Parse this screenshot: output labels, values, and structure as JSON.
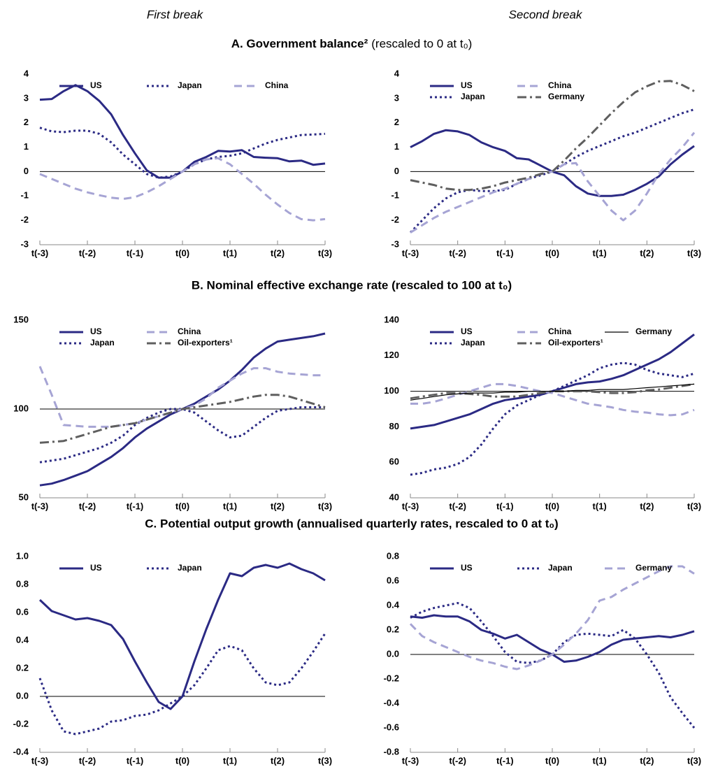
{
  "column_headings": [
    "First break",
    "Second break"
  ],
  "sections": [
    {
      "title": "A. Government balance²",
      "note": "(rescaled to 0 at t₀)"
    },
    {
      "title": "B. Nominal effective exchange rate (rescaled to 100 at t₀)"
    },
    {
      "title": "C. Potential output growth (annualised quarterly rates, rescaled to 0 at t₀)"
    }
  ],
  "chart_data": [
    {
      "type": "line",
      "x": [
        -3,
        -2.75,
        -2.5,
        -2.25,
        -2,
        -1.75,
        -1.5,
        -1.25,
        -1,
        -0.75,
        -0.5,
        -0.25,
        0,
        0.25,
        0.5,
        0.75,
        1,
        1.25,
        1.5,
        1.75,
        2,
        2.25,
        2.5,
        2.75,
        3
      ],
      "xlim": [
        -3,
        3
      ],
      "xticks": [
        {
          "value": -3,
          "label": "t(-3)"
        },
        {
          "value": -2,
          "label": "t(-2)"
        },
        {
          "value": -1,
          "label": "t(-1)"
        },
        {
          "value": 0,
          "label": "t(0)"
        },
        {
          "value": 1,
          "label": "t(1)"
        },
        {
          "value": 2,
          "label": "t(2)"
        },
        {
          "value": 3,
          "label": "t(3)"
        }
      ],
      "ylim": [
        -3,
        4
      ],
      "yticks": [
        -3,
        -2,
        -1,
        0,
        1,
        2,
        3,
        4
      ],
      "reference_line": 0,
      "series": [
        {
          "name": "US",
          "color": "#2b2a84",
          "dash": "solid",
          "values": [
            2.95,
            2.98,
            3.3,
            3.55,
            3.3,
            2.9,
            2.35,
            1.5,
            0.75,
            0.05,
            -0.25,
            -0.25,
            0,
            0.4,
            0.6,
            0.85,
            0.82,
            0.88,
            0.6,
            0.57,
            0.55,
            0.42,
            0.45,
            0.28,
            0.33
          ]
        },
        {
          "name": "Japan",
          "color": "#2b2a84",
          "dash": "dotted",
          "values": [
            1.8,
            1.65,
            1.62,
            1.68,
            1.68,
            1.55,
            1.2,
            0.7,
            0.3,
            -0.1,
            -0.25,
            -0.2,
            0,
            0.3,
            0.5,
            0.6,
            0.65,
            0.75,
            0.95,
            1.15,
            1.3,
            1.4,
            1.5,
            1.52,
            1.55
          ]
        },
        {
          "name": "China",
          "color": "#a6a4d4",
          "dash": "dashed",
          "values": [
            -0.1,
            -0.3,
            -0.5,
            -0.7,
            -0.85,
            -0.97,
            -1.07,
            -1.12,
            -1.05,
            -0.85,
            -0.6,
            -0.3,
            0,
            0.3,
            0.5,
            0.55,
            0.3,
            -0.1,
            -0.5,
            -0.95,
            -1.35,
            -1.7,
            -1.95,
            -2.0,
            -1.95
          ]
        }
      ]
    },
    {
      "type": "line",
      "x": [
        -3,
        -2.75,
        -2.5,
        -2.25,
        -2,
        -1.75,
        -1.5,
        -1.25,
        -1,
        -0.75,
        -0.5,
        -0.25,
        0,
        0.25,
        0.5,
        0.75,
        1,
        1.25,
        1.5,
        1.75,
        2,
        2.25,
        2.5,
        2.75,
        3
      ],
      "xlim": [
        -3,
        3
      ],
      "xticks": [
        {
          "value": -3,
          "label": "t(-3)"
        },
        {
          "value": -2,
          "label": "t(-2)"
        },
        {
          "value": -1,
          "label": "t(-1)"
        },
        {
          "value": 0,
          "label": "t(0)"
        },
        {
          "value": 1,
          "label": "t(1)"
        },
        {
          "value": 2,
          "label": "t(2)"
        },
        {
          "value": 3,
          "label": "t(3)"
        }
      ],
      "ylim": [
        -3,
        4
      ],
      "yticks": [
        -3,
        -2,
        -1,
        0,
        1,
        2,
        3,
        4
      ],
      "reference_line": 0,
      "series": [
        {
          "name": "US",
          "color": "#2b2a84",
          "dash": "solid",
          "values": [
            1.0,
            1.25,
            1.55,
            1.7,
            1.65,
            1.5,
            1.2,
            1.0,
            0.85,
            0.55,
            0.5,
            0.25,
            0,
            -0.15,
            -0.6,
            -0.9,
            -1.0,
            -1.0,
            -0.95,
            -0.75,
            -0.5,
            -0.2,
            0.3,
            0.7,
            1.05
          ]
        },
        {
          "name": "Japan",
          "color": "#2b2a84",
          "dash": "dotted",
          "values": [
            -2.5,
            -2.0,
            -1.5,
            -1.1,
            -0.85,
            -0.75,
            -0.8,
            -0.8,
            -0.75,
            -0.5,
            -0.3,
            -0.15,
            0,
            0.3,
            0.6,
            0.85,
            1.05,
            1.25,
            1.45,
            1.6,
            1.8,
            2.0,
            2.2,
            2.4,
            2.55
          ]
        },
        {
          "name": "China",
          "color": "#a6a4d4",
          "dash": "dashed",
          "values": [
            -2.5,
            -2.2,
            -1.9,
            -1.65,
            -1.45,
            -1.25,
            -1.05,
            -0.85,
            -0.7,
            -0.5,
            -0.3,
            -0.1,
            0,
            0.3,
            0.35,
            -0.4,
            -1.0,
            -1.6,
            -2.0,
            -1.6,
            -0.9,
            -0.1,
            0.5,
            1.0,
            1.6
          ]
        },
        {
          "name": "Germany",
          "color": "#5f5f5f",
          "dash": "dash-dot",
          "values": [
            -0.35,
            -0.45,
            -0.55,
            -0.7,
            -0.75,
            -0.75,
            -0.7,
            -0.6,
            -0.45,
            -0.35,
            -0.25,
            -0.1,
            0,
            0.45,
            0.95,
            1.4,
            1.9,
            2.4,
            2.85,
            3.25,
            3.5,
            3.7,
            3.72,
            3.55,
            3.3
          ]
        }
      ]
    },
    {
      "type": "line",
      "x": [
        -3,
        -2.75,
        -2.5,
        -2.25,
        -2,
        -1.75,
        -1.5,
        -1.25,
        -1,
        -0.75,
        -0.5,
        -0.25,
        0,
        0.25,
        0.5,
        0.75,
        1,
        1.25,
        1.5,
        1.75,
        2,
        2.25,
        2.5,
        2.75,
        3
      ],
      "xlim": [
        -3,
        3
      ],
      "xticks": [
        {
          "value": -3,
          "label": "t(-3)"
        },
        {
          "value": -2,
          "label": "t(-2)"
        },
        {
          "value": -1,
          "label": "t(-1)"
        },
        {
          "value": 0,
          "label": "t(0)"
        },
        {
          "value": 1,
          "label": "t(1)"
        },
        {
          "value": 2,
          "label": "t(2)"
        },
        {
          "value": 3,
          "label": "t(3)"
        }
      ],
      "ylim": [
        50,
        150
      ],
      "yticks": [
        50,
        100,
        150
      ],
      "reference_line": 100,
      "series": [
        {
          "name": "US",
          "color": "#2b2a84",
          "dash": "solid",
          "values": [
            57,
            58,
            60,
            62.5,
            65,
            69,
            73,
            78,
            84,
            89,
            93,
            97,
            100,
            103,
            107,
            111,
            116,
            122,
            129,
            134,
            138,
            139,
            140,
            141,
            142.5
          ]
        },
        {
          "name": "Japan",
          "color": "#2b2a84",
          "dash": "dotted",
          "values": [
            70,
            71,
            72,
            74,
            76,
            78,
            81,
            85,
            91,
            95,
            98,
            100,
            100,
            98,
            93,
            88,
            84,
            85,
            90,
            95,
            99,
            100,
            101,
            101,
            101
          ]
        },
        {
          "name": "China",
          "color": "#a6a4d4",
          "dash": "dashed",
          "values": [
            124,
            108,
            91,
            90.5,
            90,
            90,
            90,
            91,
            92,
            94,
            96,
            98,
            100,
            102,
            106,
            112,
            116,
            120,
            123,
            123,
            121,
            120,
            119.5,
            119,
            119
          ]
        },
        {
          "name": "Oil-exporters¹",
          "color": "#5f5f5f",
          "dash": "dash-dot",
          "values": [
            81,
            81.5,
            82,
            84,
            86,
            88,
            90,
            91,
            92,
            94,
            96,
            98,
            100,
            101,
            102,
            103,
            104,
            105.5,
            107,
            108,
            108,
            107,
            105,
            103,
            101
          ]
        }
      ]
    },
    {
      "type": "line",
      "x": [
        -3,
        -2.75,
        -2.5,
        -2.25,
        -2,
        -1.75,
        -1.5,
        -1.25,
        -1,
        -0.75,
        -0.5,
        -0.25,
        0,
        0.25,
        0.5,
        0.75,
        1,
        1.25,
        1.5,
        1.75,
        2,
        2.25,
        2.5,
        2.75,
        3
      ],
      "xlim": [
        -3,
        3
      ],
      "xticks": [
        {
          "value": -3,
          "label": "t(-3)"
        },
        {
          "value": -2,
          "label": "t(-2)"
        },
        {
          "value": -1,
          "label": "t(-1)"
        },
        {
          "value": 0,
          "label": "t(0)"
        },
        {
          "value": 1,
          "label": "t(1)"
        },
        {
          "value": 2,
          "label": "t(2)"
        },
        {
          "value": 3,
          "label": "t(3)"
        }
      ],
      "ylim": [
        40,
        140
      ],
      "yticks": [
        40,
        60,
        80,
        100,
        120,
        140
      ],
      "reference_line": 100,
      "series": [
        {
          "name": "US",
          "color": "#2b2a84",
          "dash": "solid",
          "values": [
            79,
            80,
            81,
            83,
            85,
            87,
            90,
            93,
            95,
            96,
            97,
            98,
            100,
            102,
            104,
            105,
            105.5,
            107,
            109,
            112,
            115,
            118,
            122,
            127,
            132
          ]
        },
        {
          "name": "Japan",
          "color": "#2b2a84",
          "dash": "dotted",
          "values": [
            53,
            54,
            56,
            57,
            59,
            63,
            70,
            79,
            87,
            92,
            95,
            98,
            100,
            103,
            106,
            109,
            113,
            115,
            116,
            115,
            112,
            110,
            109,
            108,
            110
          ]
        },
        {
          "name": "China",
          "color": "#a6a4d4",
          "dash": "dashed",
          "values": [
            93,
            93,
            94,
            96,
            98,
            100,
            102,
            104,
            104,
            103,
            101.5,
            100,
            99,
            97,
            95,
            93,
            92,
            91,
            89.5,
            88.5,
            88,
            87,
            86.5,
            87,
            89.5
          ]
        },
        {
          "name": "Oil-exporters¹",
          "color": "#5f5f5f",
          "dash": "dash-dot",
          "values": [
            96,
            97,
            98,
            99,
            99,
            98.5,
            98,
            97,
            97,
            97,
            98,
            99,
            100,
            100,
            100,
            100,
            99.5,
            99,
            99,
            99.5,
            100.5,
            101,
            102,
            103,
            104
          ]
        },
        {
          "name": "Germany",
          "color": "#000000",
          "dash": "thin",
          "values": [
            95,
            96,
            97,
            98,
            98.5,
            99,
            99,
            99,
            99.5,
            99.5,
            100,
            100,
            100,
            100,
            100.5,
            100.5,
            101,
            101,
            101,
            101.5,
            102,
            102.5,
            103,
            103.5,
            104
          ]
        }
      ]
    },
    {
      "type": "line",
      "x": [
        -3,
        -2.75,
        -2.5,
        -2.25,
        -2,
        -1.75,
        -1.5,
        -1.25,
        -1,
        -0.75,
        -0.5,
        -0.25,
        0,
        0.25,
        0.5,
        0.75,
        1,
        1.25,
        1.5,
        1.75,
        2,
        2.25,
        2.5,
        2.75,
        3
      ],
      "xlim": [
        -3,
        3
      ],
      "xticks": [
        {
          "value": -3,
          "label": "t(-3)"
        },
        {
          "value": -2,
          "label": "t(-2)"
        },
        {
          "value": -1,
          "label": "t(-1)"
        },
        {
          "value": 0,
          "label": "t(0)"
        },
        {
          "value": 1,
          "label": "t(1)"
        },
        {
          "value": 2,
          "label": "t(2)"
        },
        {
          "value": 3,
          "label": "t(3)"
        }
      ],
      "ylim": [
        -0.4,
        1.0
      ],
      "yticks": [
        -0.4,
        -0.2,
        {
          "value": 0,
          "label": "0.0"
        },
        0.2,
        0.4,
        0.6,
        0.8,
        {
          "value": 1,
          "label": "1.0"
        }
      ],
      "reference_line": 0,
      "series": [
        {
          "name": "US",
          "color": "#2b2a84",
          "dash": "solid",
          "values": [
            0.69,
            0.61,
            0.58,
            0.55,
            0.56,
            0.54,
            0.51,
            0.41,
            0.25,
            0.1,
            -0.04,
            -0.09,
            0,
            0.25,
            0.48,
            0.69,
            0.88,
            0.86,
            0.92,
            0.94,
            0.92,
            0.95,
            0.91,
            0.88,
            0.83
          ]
        },
        {
          "name": "Japan",
          "color": "#2b2a84",
          "dash": "dotted",
          "values": [
            0.13,
            -0.1,
            -0.25,
            -0.27,
            -0.25,
            -0.23,
            -0.18,
            -0.17,
            -0.14,
            -0.13,
            -0.1,
            -0.05,
            0,
            0.08,
            0.2,
            0.33,
            0.36,
            0.33,
            0.2,
            0.1,
            0.08,
            0.1,
            0.2,
            0.32,
            0.45
          ]
        }
      ]
    },
    {
      "type": "line",
      "x": [
        -3,
        -2.75,
        -2.5,
        -2.25,
        -2,
        -1.75,
        -1.5,
        -1.25,
        -1,
        -0.75,
        -0.5,
        -0.25,
        0,
        0.25,
        0.5,
        0.75,
        1,
        1.25,
        1.5,
        1.75,
        2,
        2.25,
        2.5,
        2.75,
        3
      ],
      "xlim": [
        -3,
        3
      ],
      "xticks": [
        {
          "value": -3,
          "label": "t(-3)"
        },
        {
          "value": -2,
          "label": "t(-2)"
        },
        {
          "value": -1,
          "label": "t(-1)"
        },
        {
          "value": 0,
          "label": "t(0)"
        },
        {
          "value": 1,
          "label": "t(1)"
        },
        {
          "value": 2,
          "label": "t(2)"
        },
        {
          "value": 3,
          "label": "t(3)"
        }
      ],
      "ylim": [
        -0.8,
        0.8
      ],
      "yticks": [
        -0.8,
        -0.6,
        -0.4,
        -0.2,
        {
          "value": 0,
          "label": "0.0"
        },
        0.2,
        0.4,
        0.6,
        0.8
      ],
      "reference_line": 0,
      "series": [
        {
          "name": "US",
          "color": "#2b2a84",
          "dash": "solid",
          "values": [
            0.31,
            0.3,
            0.32,
            0.31,
            0.31,
            0.27,
            0.2,
            0.17,
            0.13,
            0.16,
            0.1,
            0.04,
            0,
            -0.06,
            -0.05,
            -0.02,
            0.02,
            0.08,
            0.12,
            0.13,
            0.14,
            0.15,
            0.14,
            0.16,
            0.19
          ]
        },
        {
          "name": "Japan",
          "color": "#2b2a84",
          "dash": "dotted",
          "values": [
            0.3,
            0.35,
            0.38,
            0.4,
            0.42,
            0.38,
            0.27,
            0.15,
            0.02,
            -0.06,
            -0.07,
            -0.05,
            0,
            0.1,
            0.16,
            0.17,
            0.16,
            0.15,
            0.2,
            0.13,
            0.0,
            -0.15,
            -0.35,
            -0.48,
            -0.6
          ]
        },
        {
          "name": "Germany",
          "color": "#a6a4d4",
          "dash": "dashed",
          "values": [
            0.25,
            0.15,
            0.1,
            0.06,
            0.02,
            -0.02,
            -0.05,
            -0.07,
            -0.1,
            -0.12,
            -0.09,
            -0.05,
            0,
            0.08,
            0.17,
            0.28,
            0.44,
            0.47,
            0.53,
            0.58,
            0.63,
            0.68,
            0.72,
            0.72,
            0.66
          ]
        }
      ]
    }
  ]
}
